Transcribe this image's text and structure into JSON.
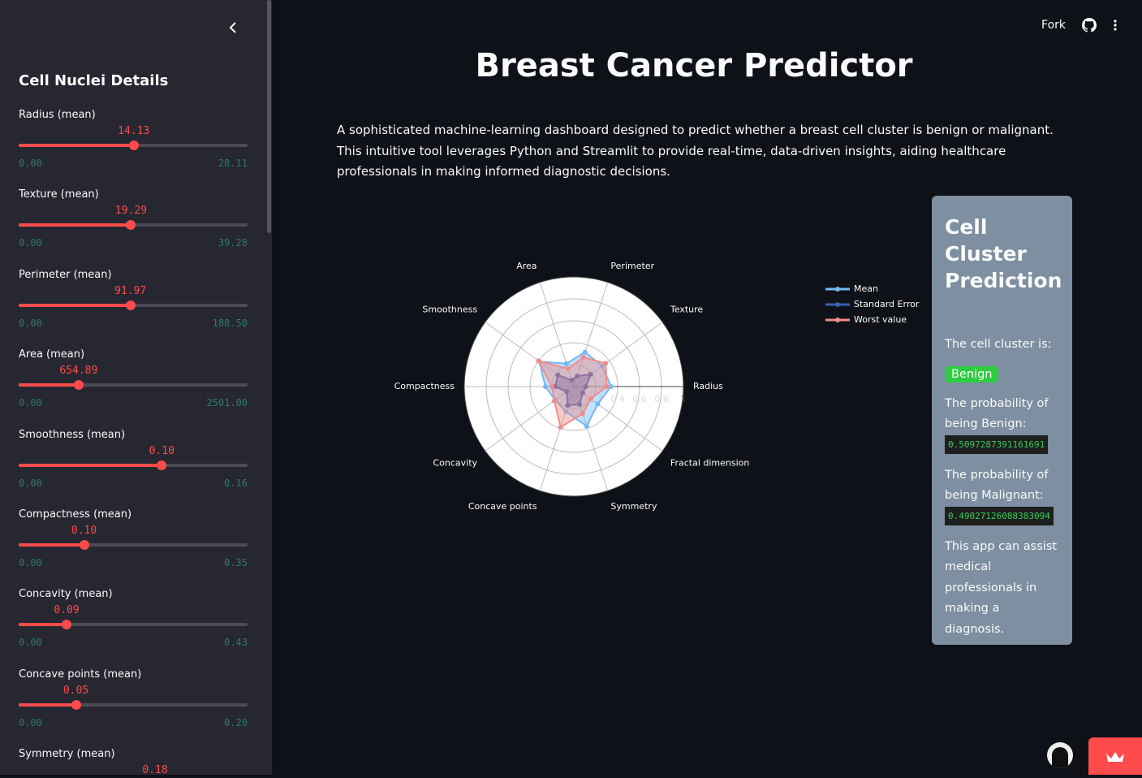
{
  "sidebar": {
    "title": "Cell Nuclei Details",
    "sliders": [
      {
        "label": "Radius (mean)",
        "value": "14.13",
        "min": "0.00",
        "max": "28.11"
      },
      {
        "label": "Texture (mean)",
        "value": "19.29",
        "min": "0.00",
        "max": "39.28"
      },
      {
        "label": "Perimeter (mean)",
        "value": "91.97",
        "min": "0.00",
        "max": "188.50"
      },
      {
        "label": "Area (mean)",
        "value": "654.89",
        "min": "0.00",
        "max": "2501.00"
      },
      {
        "label": "Smoothness (mean)",
        "value": "0.10",
        "min": "0.00",
        "max": "0.16"
      },
      {
        "label": "Compactness (mean)",
        "value": "0.10",
        "min": "0.00",
        "max": "0.35"
      },
      {
        "label": "Concavity (mean)",
        "value": "0.09",
        "min": "0.00",
        "max": "0.43"
      },
      {
        "label": "Concave points (mean)",
        "value": "0.05",
        "min": "0.00",
        "max": "0.20"
      },
      {
        "label": "Symmetry (mean)",
        "value": "0.18"
      }
    ]
  },
  "toolbar": {
    "fork": "Fork"
  },
  "title": "Breast Cancer Predictor",
  "description": "A sophisticated machine-learning dashboard designed to predict whether a breast cell cluster is benign or malignant. This intuitive tool leverages Python and Streamlit to provide real-time, data-driven insights, aiding healthcare professionals in making informed diagnostic decisions.",
  "chart_data": {
    "type": "radar",
    "categories": [
      "Radius",
      "Texture",
      "Perimeter",
      "Area",
      "Smoothness",
      "Compactness",
      "Concavity",
      "Concave points",
      "Symmetry",
      "Fractal dimension"
    ],
    "series": [
      {
        "name": "Mean",
        "color": "#74b9f0",
        "values": [
          0.34,
          0.32,
          0.33,
          0.22,
          0.39,
          0.26,
          0.21,
          0.24,
          0.38,
          0.27
        ]
      },
      {
        "name": "Standard Error",
        "color": "#3a5fb0",
        "values": [
          0.11,
          0.19,
          0.1,
          0.06,
          0.18,
          0.17,
          0.08,
          0.18,
          0.17,
          0.1
        ]
      },
      {
        "name": "Worst value",
        "color": "#f08c8c",
        "values": [
          0.3,
          0.36,
          0.28,
          0.17,
          0.4,
          0.2,
          0.22,
          0.39,
          0.26,
          0.19
        ]
      }
    ],
    "ylim": [
      0,
      1
    ],
    "yticks": [
      0,
      0.2,
      0.4,
      0.6,
      0.8,
      1
    ],
    "grid": true,
    "legend": "top-right"
  },
  "prediction": {
    "title": "Cell Cluster Prediction",
    "intro": "The cell cluster is:",
    "result": "Benign",
    "benign_label": "The probability of being Benign:",
    "benign_value": "0.5097287391161691",
    "malignant_label": "The probability of being Malignant:",
    "malignant_value": "0.49027126088383094",
    "note": "This app can assist medical professionals in making a diagnosis."
  }
}
